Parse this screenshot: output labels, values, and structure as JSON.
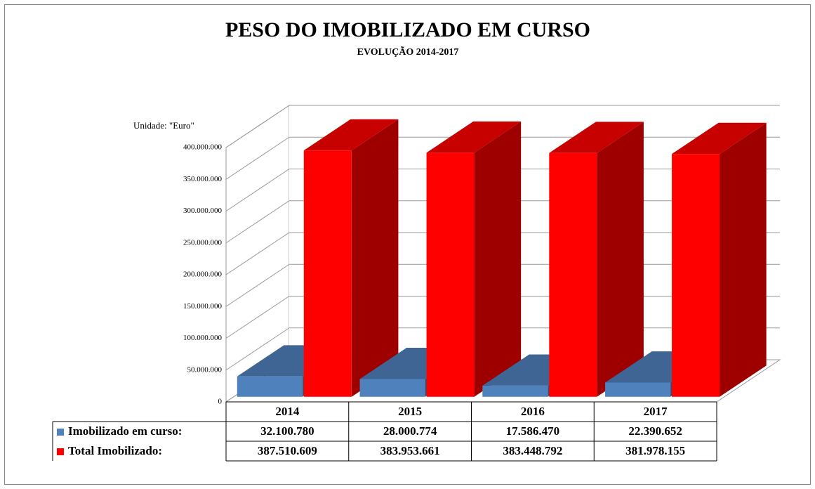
{
  "chart_data": {
    "type": "bar3d",
    "title": "PESO DO IMOBILIZADO EM CURSO",
    "subtitle": "EVOLUÇÃO 2014-2017",
    "unit_label": "Unidade: \"Euro\"",
    "categories": [
      "2014",
      "2015",
      "2016",
      "2017"
    ],
    "series": [
      {
        "name": "Imobilizado em curso:",
        "color": "#4f81bd",
        "values": [
          32100780,
          28000774,
          17586470,
          22390652
        ],
        "value_labels": [
          "32.100.780",
          "28.000.774",
          "17.586.470",
          "22.390.652"
        ]
      },
      {
        "name": "Total Imobilizado:",
        "color": "#ff0000",
        "values": [
          387510609,
          383953661,
          383448792,
          381978155
        ],
        "value_labels": [
          "387.510.609",
          "383.953.661",
          "383.448.792",
          "381.978.155"
        ]
      }
    ],
    "ylim": [
      0,
      400000000
    ],
    "yticks": [
      {
        "value": 0,
        "label": "0"
      },
      {
        "value": 50000000,
        "label": "50.000.000"
      },
      {
        "value": 100000000,
        "label": "100.000.000"
      },
      {
        "value": 150000000,
        "label": "150.000.000"
      },
      {
        "value": 200000000,
        "label": "200.000.000"
      },
      {
        "value": 250000000,
        "label": "250.000.000"
      },
      {
        "value": 300000000,
        "label": "300.000.000"
      },
      {
        "value": 350000000,
        "label": "350.000.000"
      },
      {
        "value": 400000000,
        "label": "400.000.000"
      }
    ],
    "grid": true
  }
}
